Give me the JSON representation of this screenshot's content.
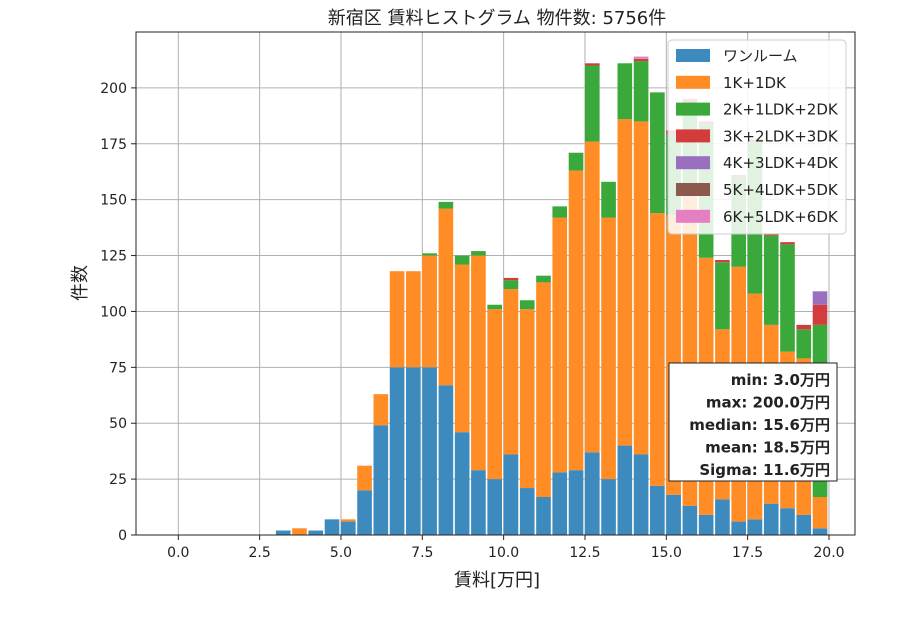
{
  "chart_data": {
    "type": "bar",
    "stacked": true,
    "title": "新宿区 賃料ヒストグラム  物件数: 5756件",
    "xlabel": "賃料[万円]",
    "ylabel": "件数",
    "xlim": [
      -1.3,
      20.8
    ],
    "ylim": [
      0,
      225
    ],
    "grid": true,
    "legend_position": "top-right",
    "x_ticks": [
      0.0,
      2.5,
      5.0,
      7.5,
      10.0,
      12.5,
      15.0,
      17.5,
      20.0
    ],
    "x_tick_labels": [
      "0.0",
      "2.5",
      "5.0",
      "7.5",
      "10.0",
      "12.5",
      "15.0",
      "17.5",
      "20.0"
    ],
    "y_ticks": [
      0,
      25,
      50,
      75,
      100,
      125,
      150,
      175,
      200
    ],
    "y_tick_labels": [
      "0",
      "25",
      "50",
      "75",
      "100",
      "125",
      "150",
      "175",
      "200"
    ],
    "bin_width": 0.5,
    "bin_start": [
      3.0,
      3.5,
      4.0,
      4.5,
      5.0,
      5.5,
      6.0,
      6.5,
      7.0,
      7.5,
      8.0,
      8.5,
      9.0,
      9.5,
      10.0,
      10.5,
      11.0,
      11.5,
      12.0,
      12.5,
      13.0,
      13.5,
      14.0,
      14.5,
      15.0,
      15.5,
      16.0,
      16.5,
      17.0,
      17.5,
      18.0,
      18.5,
      19.0,
      19.5
    ],
    "series": [
      {
        "name": "ワンルーム",
        "color": "#3c8abe",
        "values": [
          2,
          0,
          2,
          7,
          6,
          20,
          49,
          75,
          75,
          75,
          67,
          46,
          29,
          25,
          36,
          21,
          17,
          28,
          29,
          37,
          25,
          40,
          36,
          22,
          18,
          13,
          9,
          16,
          6,
          7,
          14,
          12,
          9,
          3
        ]
      },
      {
        "name": "1K+1DK",
        "color": "#ff8c25",
        "values": [
          0,
          3,
          0,
          0,
          1,
          11,
          14,
          43,
          43,
          50,
          79,
          75,
          96,
          76,
          74,
          80,
          96,
          114,
          134,
          139,
          117,
          146,
          149,
          122,
          125,
          140,
          115,
          76,
          114,
          101,
          80,
          70,
          70,
          14
        ]
      },
      {
        "name": "2K+1LDK+2DK",
        "color": "#3aa83a",
        "values": [
          0,
          0,
          0,
          0,
          0,
          0,
          0,
          0,
          0,
          1,
          3,
          4,
          2,
          2,
          4,
          4,
          3,
          5,
          8,
          34,
          16,
          25,
          27,
          54,
          36,
          40,
          60,
          30,
          40,
          68,
          40,
          48,
          13,
          77
        ]
      },
      {
        "name": "3K+2LDK+3DK",
        "color": "#d23c3c",
        "values": [
          0,
          0,
          0,
          0,
          0,
          0,
          0,
          0,
          0,
          0,
          0,
          0,
          0,
          0,
          1,
          0,
          0,
          0,
          0,
          1,
          0,
          0,
          1,
          0,
          2,
          2,
          1,
          1,
          1,
          1,
          1,
          1,
          2,
          9
        ]
      },
      {
        "name": "4K+3LDK+4DK",
        "color": "#9a6fc0",
        "values": [
          0,
          0,
          0,
          0,
          0,
          0,
          0,
          0,
          0,
          0,
          0,
          0,
          0,
          0,
          0,
          0,
          0,
          0,
          0,
          0,
          0,
          0,
          0,
          0,
          0,
          0,
          0,
          0,
          0,
          0,
          0,
          0,
          0,
          6
        ]
      },
      {
        "name": "5K+4LDK+5DK",
        "color": "#8c5a4c",
        "values": [
          0,
          0,
          0,
          0,
          0,
          0,
          0,
          0,
          0,
          0,
          0,
          0,
          0,
          0,
          0,
          0,
          0,
          0,
          0,
          0,
          0,
          0,
          0,
          0,
          0,
          0,
          0,
          0,
          0,
          0,
          0,
          0,
          0,
          0
        ]
      },
      {
        "name": "6K+5LDK+6DK",
        "color": "#e57fc3",
        "values": [
          0,
          0,
          0,
          0,
          0,
          0,
          0,
          0,
          0,
          0,
          0,
          0,
          0,
          0,
          0,
          0,
          0,
          0,
          0,
          0,
          0,
          0,
          1,
          0,
          0,
          0,
          0,
          0,
          0,
          0,
          0,
          0,
          0,
          0
        ]
      }
    ],
    "stats_box": {
      "lines": [
        "min: 3.0万円",
        "max: 200.0万円",
        "median: 15.6万円",
        "mean: 18.5万円",
        "Sigma: 11.6万円"
      ]
    }
  }
}
